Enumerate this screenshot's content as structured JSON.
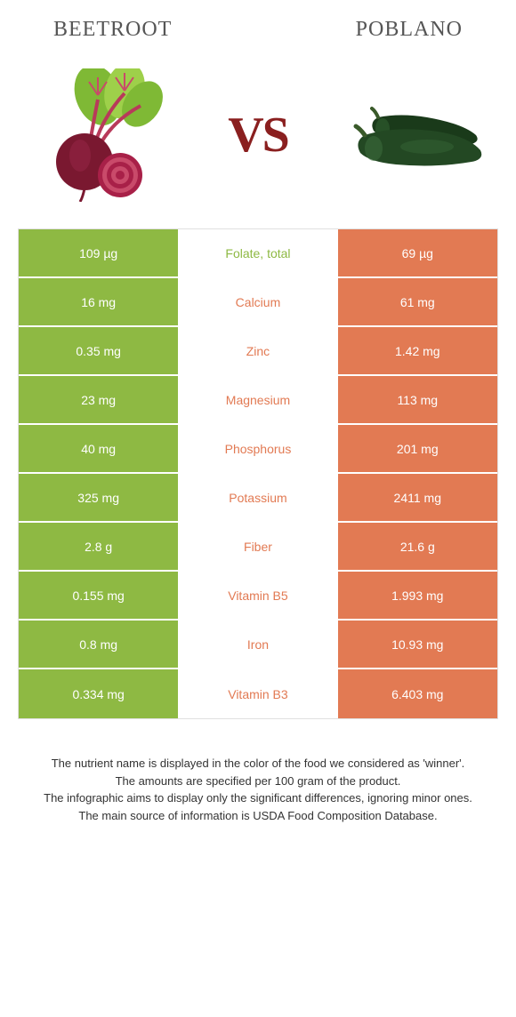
{
  "header": {
    "left_title": "Beetroot",
    "right_title": "Poblano"
  },
  "vs_label": "VS",
  "colors": {
    "left_bg": "#8eb943",
    "right_bg": "#e27a53",
    "left_text": "#8eb943",
    "right_text": "#e27a53"
  },
  "rows": [
    {
      "left": "109 µg",
      "label": "Folate, total",
      "right": "69 µg",
      "winner": "left"
    },
    {
      "left": "16 mg",
      "label": "Calcium",
      "right": "61 mg",
      "winner": "right"
    },
    {
      "left": "0.35 mg",
      "label": "Zinc",
      "right": "1.42 mg",
      "winner": "right"
    },
    {
      "left": "23 mg",
      "label": "Magnesium",
      "right": "113 mg",
      "winner": "right"
    },
    {
      "left": "40 mg",
      "label": "Phosphorus",
      "right": "201 mg",
      "winner": "right"
    },
    {
      "left": "325 mg",
      "label": "Potassium",
      "right": "2411 mg",
      "winner": "right"
    },
    {
      "left": "2.8 g",
      "label": "Fiber",
      "right": "21.6 g",
      "winner": "right"
    },
    {
      "left": "0.155 mg",
      "label": "Vitamin B5",
      "right": "1.993 mg",
      "winner": "right"
    },
    {
      "left": "0.8 mg",
      "label": "Iron",
      "right": "10.93 mg",
      "winner": "right"
    },
    {
      "left": "0.334 mg",
      "label": "Vitamin B3",
      "right": "6.403 mg",
      "winner": "right"
    }
  ],
  "footer": {
    "line1": "The nutrient name is displayed in the color of the food we considered as 'winner'.",
    "line2": "The amounts are specified per 100 gram of the product.",
    "line3": "The infographic aims to display only the significant differences, ignoring minor ones.",
    "line4": "The main source of information is USDA Food Composition Database."
  }
}
